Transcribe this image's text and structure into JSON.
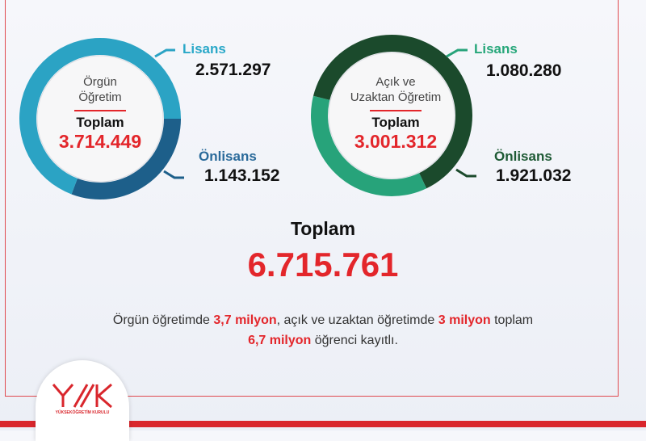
{
  "chart_data": [
    {
      "type": "pie",
      "variant": "donut",
      "title": "Örgün Öğretim",
      "total_label": "Toplam",
      "total": "3.714.449",
      "categories": [
        "Lisans",
        "Önlisans"
      ],
      "values": [
        2571297,
        1143152
      ],
      "value_labels": [
        "2.571.297",
        "1.143.152"
      ],
      "colors": [
        "#2ba3c4",
        "#1d5f8a"
      ],
      "label_colors": [
        "#2aa8c8",
        "#2a6a9a"
      ]
    },
    {
      "type": "pie",
      "variant": "donut",
      "title_lines": [
        "Açık ve",
        "Uzaktan Öğretim"
      ],
      "total_label": "Toplam",
      "total": "3.001.312",
      "categories": [
        "Lisans",
        "Önlisans"
      ],
      "values": [
        1080280,
        1921032
      ],
      "value_labels": [
        "1.080.280",
        "1.921.032"
      ],
      "colors": [
        "#27a37a",
        "#1b4a2c"
      ],
      "label_colors": [
        "#27a77a",
        "#1e5a35"
      ]
    }
  ],
  "grand_total": {
    "label": "Toplam",
    "value": "6.715.761"
  },
  "summary": {
    "p1": "Örgün öğretimde ",
    "b1": "3,7 milyon",
    "p2": ", açık ve uzaktan öğretimde ",
    "b2": "3 milyon",
    "p3": " toplam",
    "b3": "6,7 milyon",
    "p4": " öğrenci kayıtlı."
  },
  "logo": {
    "text": "YÜKSEKÖĞRETİM KURULU"
  },
  "colors": {
    "accent": "#e3262b"
  }
}
